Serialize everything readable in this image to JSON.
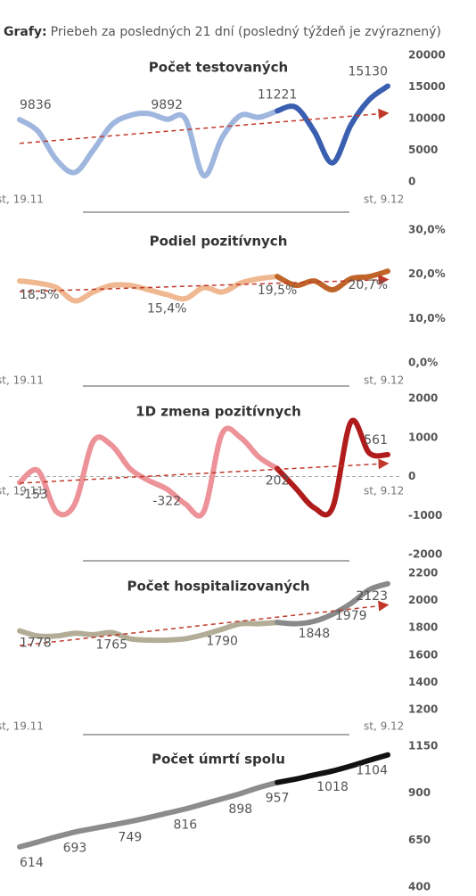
{
  "header": {
    "label": "Grafy:",
    "text": "Priebeh za posledných 21 dní (posledný týždeň je zvýraznený)"
  },
  "chart_data": [
    {
      "type": "line",
      "title": "Počet testovaných",
      "x_labels": [
        "st, 19.11",
        "st, 9.12"
      ],
      "ylim": [
        0,
        20000
      ],
      "yticks": [
        0,
        5000,
        10000,
        15000,
        20000
      ],
      "trend": true,
      "highlight_last": 7,
      "color": "#9fb6de",
      "highlight_color": "#3a5fb0",
      "values": [
        9836,
        8000,
        3500,
        1500,
        5000,
        9000,
        10500,
        10800,
        9892,
        10000,
        1000,
        7000,
        10500,
        10200,
        11221,
        11800,
        8000,
        3000,
        9000,
        13000,
        15130
      ],
      "value_labels": [
        "9836",
        null,
        null,
        null,
        null,
        null,
        null,
        null,
        "9892",
        null,
        null,
        null,
        null,
        null,
        "11221",
        null,
        null,
        null,
        null,
        null,
        "15130"
      ]
    },
    {
      "type": "line",
      "title": "Podiel pozitívnych",
      "x_labels": [
        "st, 19.11",
        "st, 9.12"
      ],
      "ylim": [
        0,
        30
      ],
      "yticks": [
        {
          "value": 0,
          "label": "0,0%"
        },
        {
          "value": 10,
          "label": "10,0%"
        },
        {
          "value": 20,
          "label": "20,0%"
        },
        {
          "value": 30,
          "label": "30,0%"
        }
      ],
      "trend": true,
      "highlight_last": 7,
      "color": "#f0b890",
      "highlight_color": "#c0652a",
      "values": [
        18.5,
        18,
        17,
        14,
        16,
        17.5,
        17.5,
        16.5,
        15.4,
        14.5,
        17,
        16,
        18,
        19,
        19.5,
        17.5,
        18.5,
        16.5,
        19,
        19.5,
        20.7
      ],
      "value_labels": [
        "18,5%",
        null,
        null,
        null,
        null,
        null,
        null,
        null,
        "15,4%",
        null,
        null,
        null,
        null,
        null,
        "19,5%",
        null,
        null,
        null,
        null,
        null,
        "20,7%"
      ]
    },
    {
      "type": "line",
      "title": "1D zmena pozitívnych",
      "x_labels": [
        "st, 19.11",
        "st, 9.12"
      ],
      "ylim": [
        -2000,
        2000
      ],
      "yticks": [
        -2000,
        -1000,
        0,
        1000,
        2000
      ],
      "trend": true,
      "zero_line": true,
      "highlight_last": 7,
      "color": "#ec9298",
      "highlight_color": "#b01c1c",
      "values": [
        -153,
        150,
        -900,
        -700,
        900,
        800,
        200,
        -100,
        -322,
        -700,
        -900,
        1100,
        1000,
        500,
        202,
        -300,
        -800,
        -800,
        1400,
        600,
        561
      ],
      "value_labels": [
        "-153",
        null,
        null,
        null,
        null,
        null,
        null,
        null,
        "-322",
        null,
        null,
        null,
        null,
        null,
        "202",
        null,
        null,
        null,
        null,
        null,
        "561"
      ]
    },
    {
      "type": "line",
      "title": "Počet hospitalizovaných",
      "x_labels": [
        "st, 19.11",
        "st, 9.12"
      ],
      "ylim": [
        1200,
        2200
      ],
      "yticks": [
        1200,
        1400,
        1600,
        1800,
        2000,
        2200
      ],
      "trend": true,
      "highlight_last": 7,
      "color": "#b3ad98",
      "highlight_color": "#8a8a8a",
      "values": [
        1778,
        1740,
        1740,
        1760,
        1750,
        1765,
        1720,
        1710,
        1710,
        1720,
        1750,
        1790,
        1830,
        1830,
        1840,
        1830,
        1848,
        1900,
        1979,
        2080,
        2123
      ],
      "value_labels": [
        "1778",
        null,
        null,
        null,
        null,
        "1765",
        null,
        null,
        null,
        null,
        null,
        "1790",
        null,
        null,
        null,
        null,
        "1848",
        null,
        "1979",
        null,
        "2123"
      ]
    },
    {
      "type": "line",
      "title": "Počet úmrtí spolu",
      "ylim": [
        400,
        1150
      ],
      "yticks": [
        400,
        650,
        900,
        1150
      ],
      "trend": false,
      "highlight_last": 7,
      "color": "#8c8c8c",
      "highlight_color": "#111111",
      "values": [
        614,
        640,
        668,
        693,
        712,
        730,
        749,
        770,
        793,
        816,
        843,
        870,
        898,
        930,
        957,
        975,
        997,
        1018,
        1045,
        1075,
        1104
      ],
      "value_labels": [
        "614",
        null,
        null,
        "693",
        null,
        null,
        "749",
        null,
        null,
        "816",
        null,
        null,
        "898",
        null,
        "957",
        null,
        null,
        "1018",
        null,
        null,
        "1104"
      ]
    }
  ]
}
